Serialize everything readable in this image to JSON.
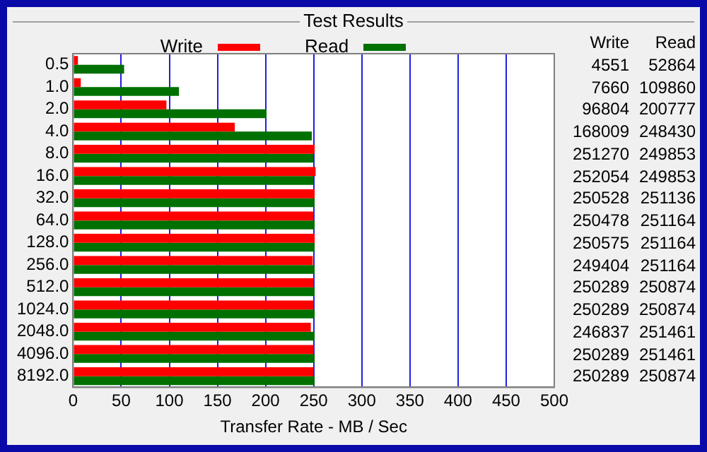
{
  "chart_data": [
    {
      "type": "bar",
      "orientation": "horizontal",
      "title": "Test Results",
      "xlabel": "Transfer Rate - MB / Sec",
      "categories": [
        "0.5",
        "1.0",
        "2.0",
        "4.0",
        "8.0",
        "16.0",
        "32.0",
        "64.0",
        "128.0",
        "256.0",
        "512.0",
        "1024.0",
        "2048.0",
        "4096.0",
        "8192.0"
      ],
      "series": [
        {
          "name": "Write",
          "color": "#ff0000",
          "values": [
            5,
            8,
            97,
            168,
            251,
            252,
            251,
            250,
            251,
            249,
            250,
            250,
            247,
            250,
            250
          ]
        },
        {
          "name": "Read",
          "color": "#007000",
          "values": [
            53,
            110,
            201,
            248,
            250,
            250,
            251,
            251,
            251,
            251,
            251,
            251,
            251,
            251,
            251
          ]
        }
      ],
      "xlim": [
        0,
        500
      ],
      "xticks": [
        0,
        50,
        100,
        150,
        200,
        250,
        300,
        350,
        400,
        450,
        500
      ],
      "grid": "x",
      "legend": "top"
    },
    {
      "type": "other",
      "annotations": [
        "Write",
        "Read",
        "4551",
        "52864",
        "7660",
        "109860",
        "96804",
        "200777",
        "168009",
        "248430",
        "251270",
        "249853",
        "252054",
        "249853",
        "250528",
        "251136",
        "250478",
        "251164",
        "250575",
        "251164",
        "249404",
        "251164",
        "250289",
        "250874",
        "250289",
        "250874",
        "246837",
        "251461",
        "250289",
        "251461",
        "250289",
        "250874"
      ]
    }
  ]
}
